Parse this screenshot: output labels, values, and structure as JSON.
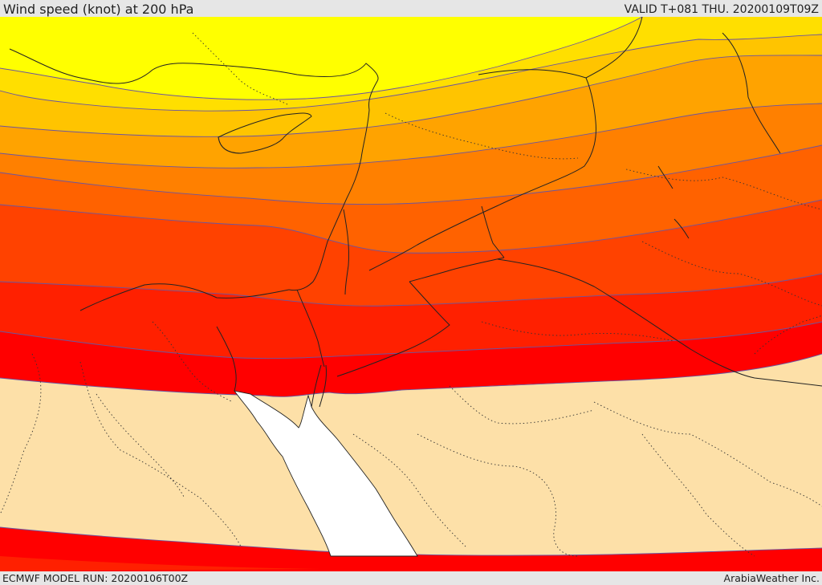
{
  "header": {
    "title": "Wind speed (knot) at 200 hPa",
    "valid": "VALID T+081 THU. 20200109T09Z"
  },
  "footer": {
    "model_run": "ECMWF MODEL RUN: 20200106T00Z",
    "credit": "ArabiaWeather Inc."
  },
  "map": {
    "colors": {
      "band_1": "#ffff00",
      "band_2": "#ffdf00",
      "band_3": "#ffc400",
      "band_4": "#ffa300",
      "band_5": "#ff8000",
      "band_6": "#ff6200",
      "band_7": "#ff4200",
      "band_8": "#ff2000",
      "band_9": "#ff0000",
      "background": "#fde0a8",
      "sea": "#ffffff",
      "contour": "#6b55a0",
      "border": "#222222"
    }
  }
}
